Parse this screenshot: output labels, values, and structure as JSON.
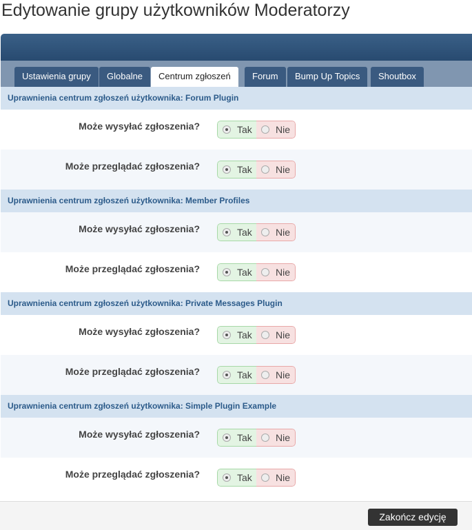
{
  "title": "Edytowanie grupy użytkowników Moderatorzy",
  "tabs": [
    {
      "label": "Ustawienia grupy",
      "active": false
    },
    {
      "label": "Globalne",
      "active": false
    },
    {
      "label": "Centrum zgłoszeń",
      "active": true
    },
    {
      "label": "Forum",
      "active": false
    },
    {
      "label": "Bump Up Topics",
      "active": false
    },
    {
      "label": "Shoutbox",
      "active": false
    }
  ],
  "sections": [
    {
      "title": "Uprawnienia centrum zgłoszeń użytkownika: Forum Plugin",
      "rows": [
        {
          "label": "Może wysyłać zgłoszenia?",
          "value": "Tak"
        },
        {
          "label": "Może przeglądać zgłoszenia?",
          "value": "Tak"
        }
      ]
    },
    {
      "title": "Uprawnienia centrum zgłoszeń użytkownika: Member Profiles",
      "rows": [
        {
          "label": "Może wysyłać zgłoszenia?",
          "value": "Tak"
        },
        {
          "label": "Może przeglądać zgłoszenia?",
          "value": "Tak"
        }
      ]
    },
    {
      "title": "Uprawnienia centrum zgłoszeń użytkownika: Private Messages Plugin",
      "rows": [
        {
          "label": "Może wysyłać zgłoszenia?",
          "value": "Tak"
        },
        {
          "label": "Może przeglądać zgłoszenia?",
          "value": "Tak"
        }
      ]
    },
    {
      "title": "Uprawnienia centrum zgłoszeń użytkownika: Simple Plugin Example",
      "rows": [
        {
          "label": "Może wysyłać zgłoszenia?",
          "value": "Tak"
        },
        {
          "label": "Może przeglądać zgłoszenia?",
          "value": "Tak"
        }
      ]
    }
  ],
  "options": {
    "yes": "Tak",
    "no": "Nie"
  },
  "footer": {
    "finish_label": "Zakończ edycję"
  }
}
